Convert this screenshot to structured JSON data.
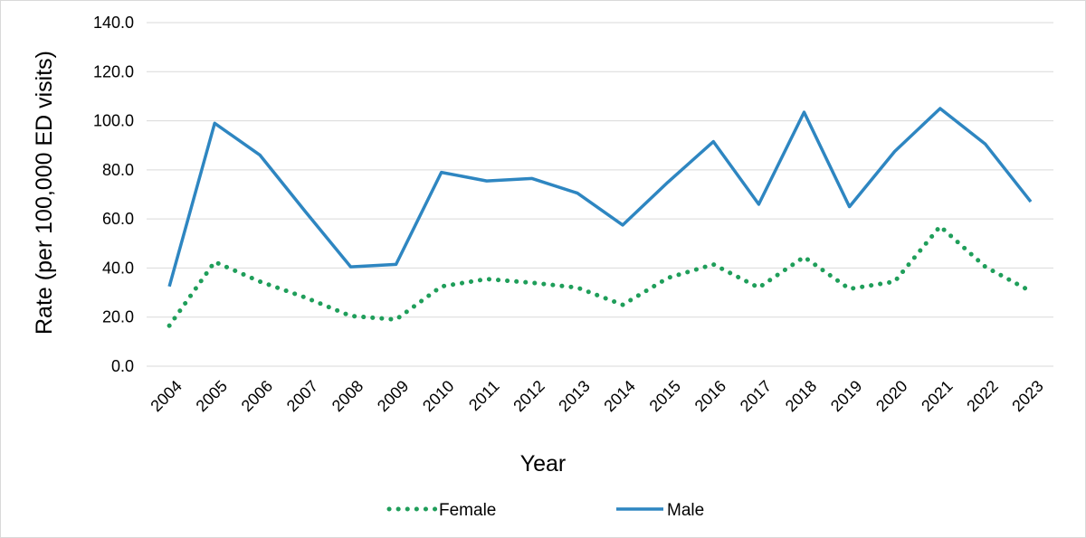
{
  "chart_data": {
    "type": "line",
    "title": "",
    "xlabel": "Year",
    "ylabel": "Rate (per 100,000 ED visits)",
    "categories": [
      "2004",
      "2005",
      "2006",
      "2007",
      "2008",
      "2009",
      "2010",
      "2011",
      "2012",
      "2013",
      "2014",
      "2015",
      "2016",
      "2017",
      "2018",
      "2019",
      "2020",
      "2021",
      "2022",
      "2023"
    ],
    "ylim": [
      0,
      140
    ],
    "yticks": [
      "0.0",
      "20.0",
      "40.0",
      "60.0",
      "80.0",
      "100.0",
      "120.0",
      "140.0"
    ],
    "grid": true,
    "legend_position": "bottom",
    "series": [
      {
        "name": "Female",
        "color": "#1f9e5a",
        "line_style": "dotted",
        "values": [
          16.5,
          42.5,
          34.5,
          28.0,
          20.5,
          19.0,
          32.5,
          35.5,
          34.0,
          32.0,
          25.0,
          36.0,
          41.5,
          32.0,
          44.5,
          31.5,
          34.5,
          57.0,
          40.5,
          30.5
        ]
      },
      {
        "name": "Male",
        "color": "#2e86c1",
        "line_style": "solid",
        "values": [
          32.5,
          99.0,
          86.0,
          63.0,
          40.5,
          41.5,
          79.0,
          75.5,
          76.5,
          70.5,
          57.5,
          75.0,
          91.5,
          66.0,
          103.5,
          65.0,
          87.5,
          105.0,
          90.5,
          67.0
        ]
      }
    ]
  }
}
